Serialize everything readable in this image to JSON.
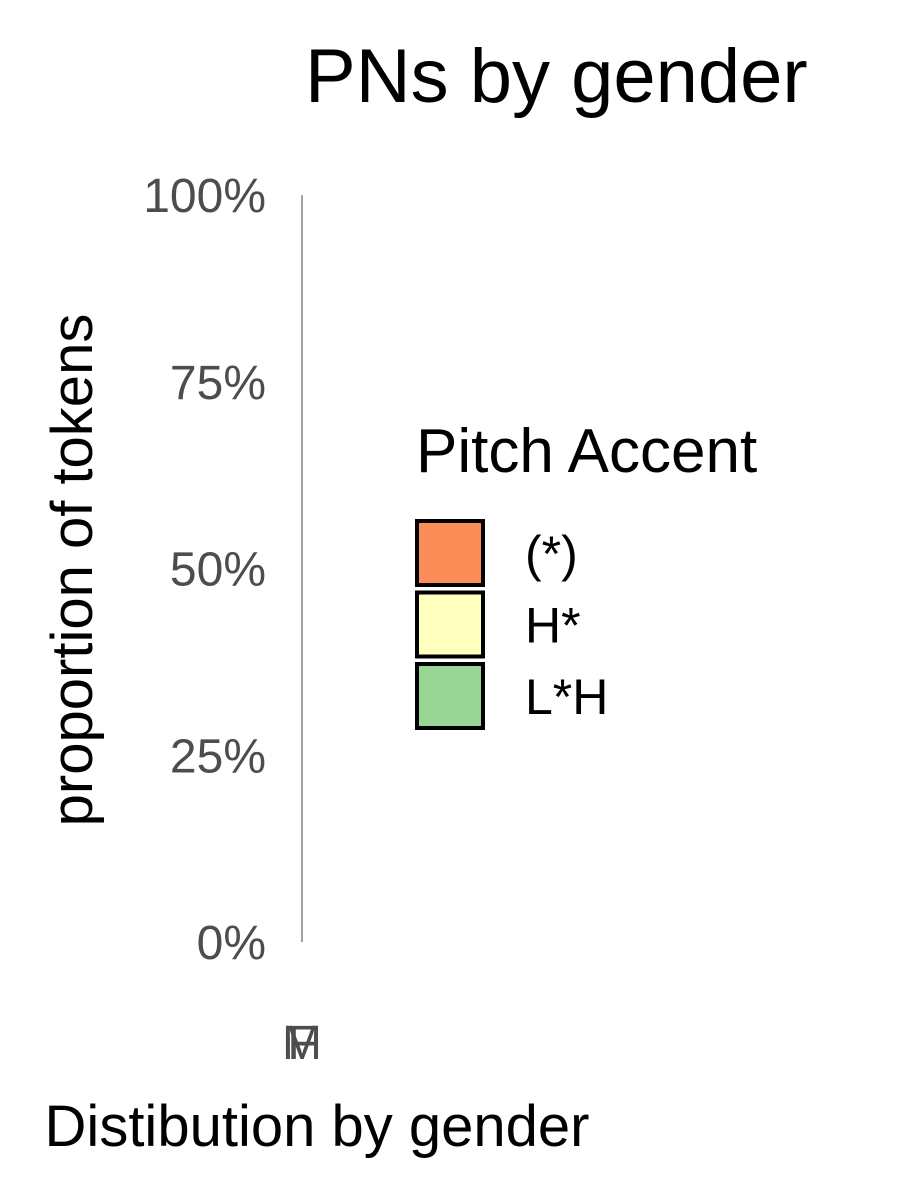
{
  "chart_data": {
    "type": "bar",
    "title": "PNs by gender",
    "xlabel": "Distibution by gender",
    "ylabel": "proportion of tokens",
    "categories": [
      "F",
      "M"
    ],
    "yticks": [
      "0%",
      "25%",
      "50%",
      "75%",
      "100%"
    ],
    "ylim": [
      0,
      1
    ],
    "stacked": true,
    "series": [
      {
        "name": "(*)",
        "color": "#fc8d59",
        "values": [
          0,
          0
        ]
      },
      {
        "name": "H*",
        "color": "#ffffbf",
        "values": [
          0,
          0
        ]
      },
      {
        "name": "L*H",
        "color": "#99d594",
        "values": [
          0,
          0
        ]
      }
    ],
    "legend": {
      "title": "Pitch Accent",
      "position": "right"
    },
    "grid": false
  }
}
